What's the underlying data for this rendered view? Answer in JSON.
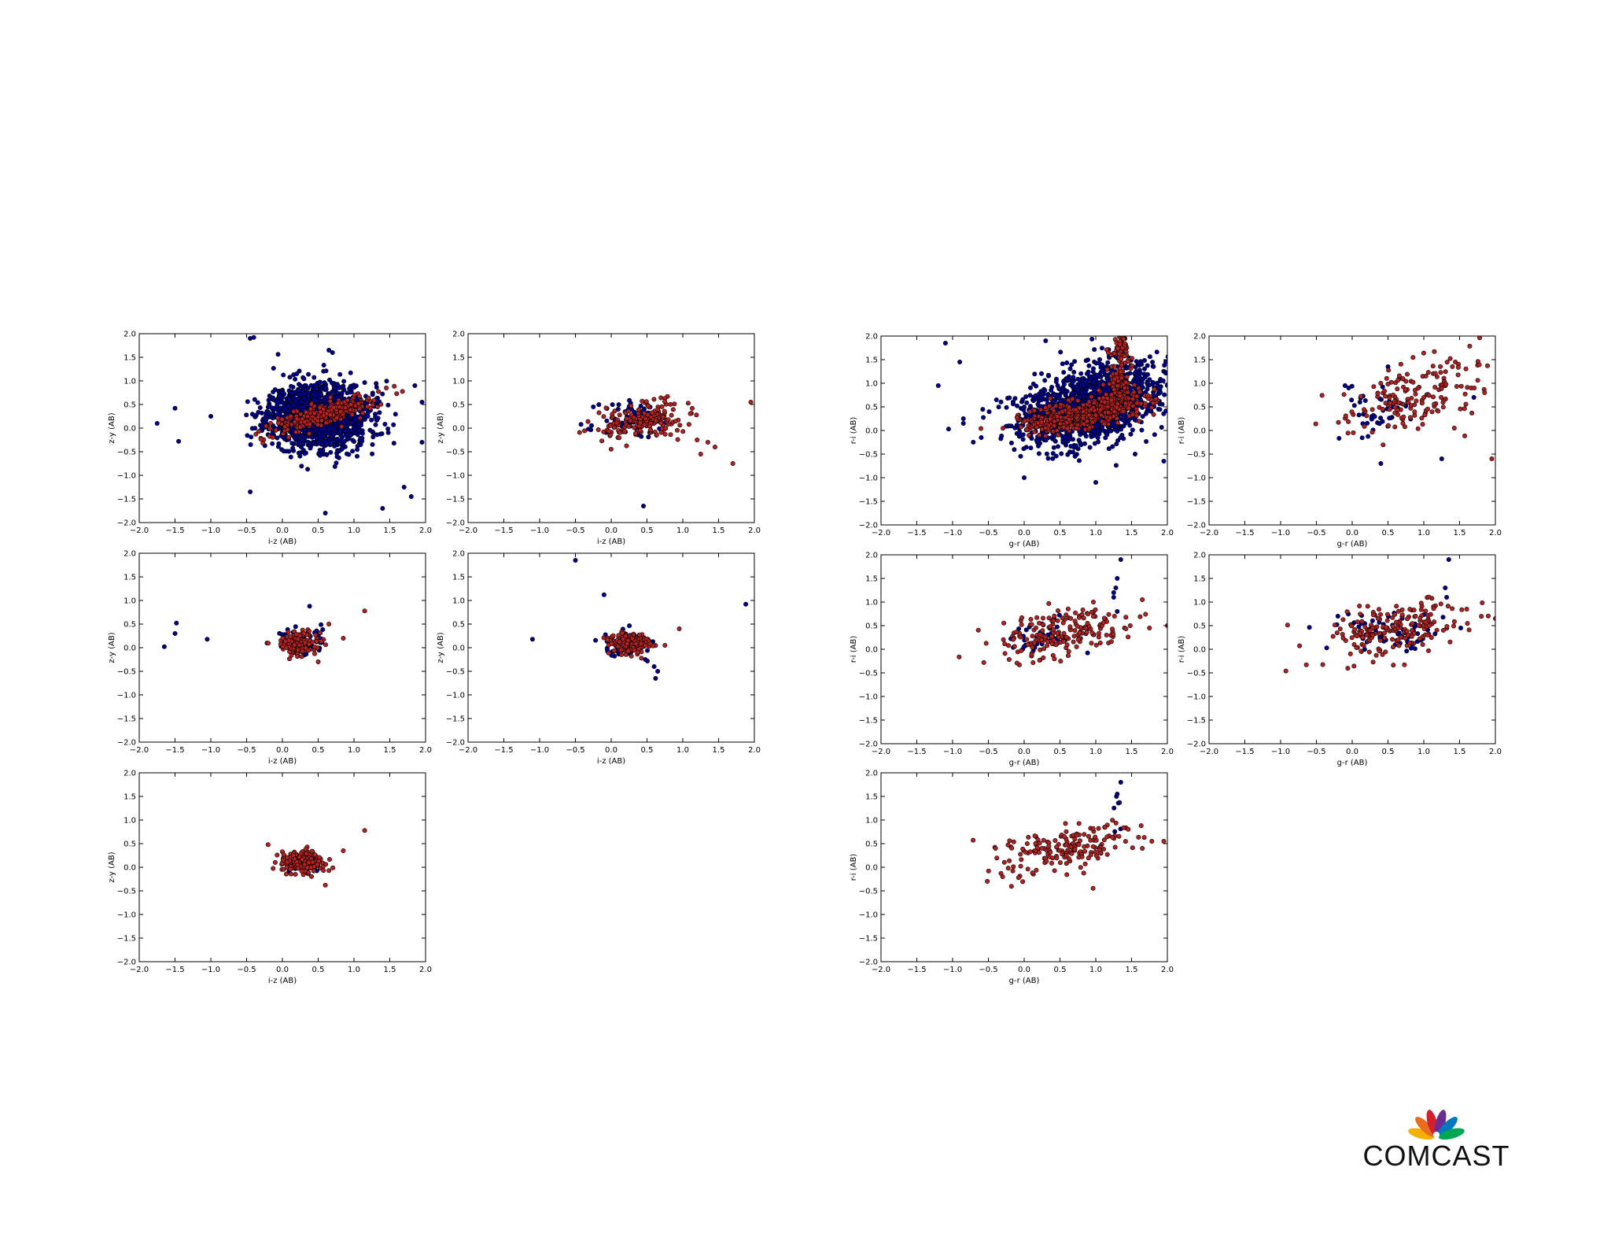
{
  "brand": {
    "logo_text": "COMCAST",
    "peacock_colors": [
      "#f2b100",
      "#e86d1f",
      "#d2202f",
      "#6a2c8e",
      "#0079c1",
      "#00a651"
    ]
  },
  "colors": {
    "series_a": "#00008b",
    "series_b": "#b22222"
  },
  "chart_data": [
    {
      "panel": "left-r1c1",
      "type": "scatter",
      "xlabel": "i-z (AB)",
      "ylabel": "z-y (AB)",
      "xlim": [
        -2.0,
        2.0
      ],
      "ylim": [
        -2.0,
        2.0
      ],
      "xticks": [
        "−2.0",
        "−1.5",
        "−1.0",
        "−0.5",
        "0.0",
        "0.5",
        "1.0",
        "1.5",
        "2.0"
      ],
      "yticks": [
        "2.0",
        "1.5",
        "1.0",
        "0.5",
        "0.0",
        "−0.5",
        "−1.0",
        "−1.5",
        "−2.0"
      ],
      "series": [
        {
          "name": "blue",
          "color": "#00008b",
          "cluster": {
            "cx": 0.5,
            "cy": 0.25,
            "sx": 0.35,
            "sy": 0.35,
            "n": 1400,
            "seed": 11
          },
          "outliers": [
            [
              -1.75,
              0.1
            ],
            [
              -1.5,
              0.42
            ],
            [
              -1.45,
              -0.28
            ],
            [
              -1.0,
              0.25
            ],
            [
              -0.45,
              1.9
            ],
            [
              -0.4,
              1.92
            ],
            [
              -0.45,
              -1.35
            ],
            [
              0.6,
              -1.8
            ],
            [
              1.4,
              -1.7
            ],
            [
              1.7,
              -1.25
            ],
            [
              1.8,
              -1.45
            ],
            [
              1.85,
              0.9
            ],
            [
              1.95,
              0.55
            ],
            [
              1.95,
              -0.3
            ],
            [
              0.7,
              1.6
            ],
            [
              0.65,
              1.65
            ]
          ]
        },
        {
          "name": "red",
          "color": "#b22222",
          "cluster": {
            "cx": 0.6,
            "cy": 0.3,
            "sx": 0.35,
            "sy": 0.12,
            "n": 300,
            "seed": 12,
            "slope": 0.45
          },
          "outliers": []
        }
      ]
    },
    {
      "panel": "left-r1c2",
      "type": "scatter",
      "xlabel": "i-z (AB)",
      "ylabel": "z-y (AB)",
      "xlim": [
        -2.0,
        2.0
      ],
      "ylim": [
        -2.0,
        2.0
      ],
      "xticks": [
        "−2.0",
        "−1.5",
        "−1.0",
        "−0.5",
        "0.0",
        "0.5",
        "1.0",
        "1.5",
        "2.0"
      ],
      "yticks": [
        "2.0",
        "1.5",
        "1.0",
        "0.5",
        "0.0",
        "−0.5",
        "−1.0",
        "−1.5",
        "−2.0"
      ],
      "series": [
        {
          "name": "blue",
          "color": "#00008b",
          "cluster": {
            "cx": 0.35,
            "cy": 0.15,
            "sx": 0.25,
            "sy": 0.2,
            "n": 70,
            "seed": 21
          },
          "outliers": [
            [
              0.45,
              -1.65
            ],
            [
              -0.25,
              0.45
            ]
          ]
        },
        {
          "name": "red",
          "color": "#b22222",
          "cluster": {
            "cx": 0.45,
            "cy": 0.15,
            "sx": 0.3,
            "sy": 0.18,
            "n": 180,
            "seed": 22,
            "slope": 0.2
          },
          "outliers": [
            [
              1.25,
              -0.55
            ],
            [
              1.35,
              -0.3
            ],
            [
              1.45,
              -0.4
            ],
            [
              1.7,
              -0.75
            ],
            [
              1.95,
              0.55
            ],
            [
              1.2,
              -0.25
            ]
          ]
        }
      ]
    },
    {
      "panel": "left-r2c1",
      "type": "scatter",
      "xlabel": "i-z (AB)",
      "ylabel": "z-y (AB)",
      "xlim": [
        -2.0,
        2.0
      ],
      "ylim": [
        -2.0,
        2.0
      ],
      "xticks": [
        "−2.0",
        "−1.5",
        "−1.0",
        "−0.5",
        "0.0",
        "0.5",
        "1.0",
        "1.5",
        "2.0"
      ],
      "yticks": [
        "2.0",
        "1.5",
        "1.0",
        "0.5",
        "0.0",
        "−0.5",
        "−1.0",
        "−1.5",
        "−2.0"
      ],
      "series": [
        {
          "name": "blue",
          "color": "#00008b",
          "cluster": {
            "cx": 0.25,
            "cy": 0.12,
            "sx": 0.18,
            "sy": 0.15,
            "n": 60,
            "seed": 31
          },
          "outliers": [
            [
              -1.65,
              0.02
            ],
            [
              -1.5,
              0.3
            ],
            [
              -1.48,
              0.52
            ],
            [
              -1.05,
              0.18
            ],
            [
              0.38,
              0.88
            ]
          ]
        },
        {
          "name": "red",
          "color": "#b22222",
          "cluster": {
            "cx": 0.2,
            "cy": 0.1,
            "sx": 0.15,
            "sy": 0.12,
            "n": 170,
            "seed": 32
          },
          "outliers": [
            [
              0.65,
              0.5
            ],
            [
              0.85,
              0.2
            ],
            [
              1.15,
              0.78
            ],
            [
              0.5,
              -0.3
            ]
          ]
        }
      ]
    },
    {
      "panel": "left-r2c2",
      "type": "scatter",
      "xlabel": "i-z (AB)",
      "ylabel": "z-y (AB)",
      "xlim": [
        -2.0,
        2.0
      ],
      "ylim": [
        -2.0,
        2.0
      ],
      "xticks": [
        "−2.0",
        "−1.5",
        "−1.0",
        "−0.5",
        "0.0",
        "0.5",
        "1.0",
        "1.5",
        "2.0"
      ],
      "yticks": [
        "2.0",
        "1.5",
        "1.0",
        "0.5",
        "0.0",
        "−0.5",
        "−1.0",
        "−1.5",
        "−2.0"
      ],
      "series": [
        {
          "name": "blue",
          "color": "#00008b",
          "cluster": {
            "cx": 0.25,
            "cy": 0.1,
            "sx": 0.2,
            "sy": 0.15,
            "n": 60,
            "seed": 41
          },
          "outliers": [
            [
              -1.1,
              0.18
            ],
            [
              -0.5,
              1.85
            ],
            [
              -0.1,
              1.12
            ],
            [
              0.6,
              -0.4
            ],
            [
              0.65,
              -0.5
            ],
            [
              0.62,
              -0.65
            ],
            [
              1.88,
              0.92
            ]
          ]
        },
        {
          "name": "red",
          "color": "#b22222",
          "cluster": {
            "cx": 0.25,
            "cy": 0.1,
            "sx": 0.15,
            "sy": 0.12,
            "n": 170,
            "seed": 42
          },
          "outliers": [
            [
              0.95,
              0.4
            ],
            [
              0.75,
              0.05
            ]
          ]
        }
      ]
    },
    {
      "panel": "left-r3c1",
      "type": "scatter",
      "xlabel": "i-z (AB)",
      "ylabel": "z-y (AB)",
      "xlim": [
        -2.0,
        2.0
      ],
      "ylim": [
        -2.0,
        2.0
      ],
      "xticks": [
        "−2.0",
        "−1.5",
        "−1.0",
        "−0.5",
        "0.0",
        "0.5",
        "1.0",
        "1.5",
        "2.0"
      ],
      "yticks": [
        "2.0",
        "1.5",
        "1.0",
        "0.5",
        "0.0",
        "−0.5",
        "−1.0",
        "−1.5",
        "−2.0"
      ],
      "series": [
        {
          "name": "blue",
          "color": "#00008b",
          "cluster": {
            "cx": 0.25,
            "cy": 0.1,
            "sx": 0.15,
            "sy": 0.12,
            "n": 25,
            "seed": 51
          },
          "outliers": []
        },
        {
          "name": "red",
          "color": "#b22222",
          "cluster": {
            "cx": 0.28,
            "cy": 0.12,
            "sx": 0.15,
            "sy": 0.13,
            "n": 180,
            "seed": 52
          },
          "outliers": [
            [
              -0.2,
              0.48
            ],
            [
              0.85,
              0.35
            ],
            [
              1.15,
              0.78
            ],
            [
              0.6,
              -0.38
            ]
          ]
        }
      ]
    },
    {
      "panel": "right-r1c1",
      "type": "scatter",
      "xlabel": "g-r (AB)",
      "ylabel": "r-i (AB)",
      "xlim": [
        -2.0,
        2.0
      ],
      "ylim": [
        -2.0,
        2.0
      ],
      "xticks": [
        "−2.0",
        "−1.5",
        "−1.0",
        "−0.5",
        "0.0",
        "0.5",
        "1.0",
        "1.5",
        "2.0"
      ],
      "yticks": [
        "2.0",
        "1.5",
        "1.0",
        "0.5",
        "0.0",
        "−0.5",
        "−1.0",
        "−1.5",
        "−2.0"
      ],
      "series": [
        {
          "name": "blue",
          "color": "#00008b",
          "cluster": {
            "cx": 0.95,
            "cy": 0.55,
            "sx": 0.5,
            "sy": 0.38,
            "n": 1500,
            "seed": 61,
            "slope": 0.35
          },
          "outliers": [
            [
              -1.2,
              0.95
            ],
            [
              -1.1,
              1.85
            ],
            [
              -0.9,
              1.45
            ],
            [
              -0.85,
              0.25
            ],
            [
              -0.85,
              0.15
            ],
            [
              0.0,
              -1.0
            ],
            [
              1.0,
              -1.1
            ],
            [
              1.55,
              -0.5
            ],
            [
              1.95,
              -0.65
            ],
            [
              0.3,
              1.9
            ],
            [
              -0.6,
              -0.15
            ]
          ]
        },
        {
          "name": "red",
          "color": "#b22222",
          "cluster": {
            "cx": 0.8,
            "cy": 0.35,
            "sx": 0.45,
            "sy": 0.15,
            "n": 450,
            "seed": 62,
            "slope": 0.3
          },
          "extra_band": {
            "x": 1.3,
            "ymin": 0.6,
            "ymax": 2.0,
            "n": 160
          },
          "outliers": []
        }
      ]
    },
    {
      "panel": "right-r1c2",
      "type": "scatter",
      "xlabel": "g-r (AB)",
      "ylabel": "r-i (AB)",
      "xlim": [
        -2.0,
        2.0
      ],
      "ylim": [
        -2.0,
        2.0
      ],
      "xticks": [
        "−2.0",
        "−1.5",
        "−1.0",
        "−0.5",
        "0.0",
        "0.5",
        "1.0",
        "1.5",
        "2.0"
      ],
      "yticks": [
        "2.0",
        "1.5",
        "1.0",
        "0.5",
        "0.0",
        "−0.5",
        "−1.0",
        "−1.5",
        "−2.0"
      ],
      "series": [
        {
          "name": "blue",
          "color": "#00008b",
          "cluster": {
            "cx": 0.35,
            "cy": 0.35,
            "sx": 0.25,
            "sy": 0.25,
            "n": 40,
            "seed": 71
          },
          "outliers": [
            [
              -0.1,
              0.95
            ],
            [
              -0.05,
              0.9
            ],
            [
              0.4,
              -0.7
            ],
            [
              1.25,
              -0.6
            ],
            [
              1.7,
              0.7
            ],
            [
              0.5,
              1.35
            ]
          ]
        },
        {
          "name": "red",
          "color": "#b22222",
          "cluster": {
            "cx": 0.85,
            "cy": 0.75,
            "sx": 0.5,
            "sy": 0.35,
            "n": 170,
            "seed": 72,
            "slope": 0.4
          },
          "outliers": [
            [
              1.95,
              -0.6
            ],
            [
              1.85,
              0.8
            ]
          ]
        }
      ]
    },
    {
      "panel": "right-r2c1",
      "type": "scatter",
      "xlabel": "g-r (AB)",
      "ylabel": "r-i (AB)",
      "xlim": [
        -2.0,
        2.0
      ],
      "ylim": [
        -2.0,
        2.0
      ],
      "xticks": [
        "−2.0",
        "−1.5",
        "−1.0",
        "−0.5",
        "0.0",
        "0.5",
        "1.0",
        "1.5",
        "2.0"
      ],
      "yticks": [
        "2.0",
        "1.5",
        "1.0",
        "0.5",
        "0.0",
        "−0.5",
        "−1.0",
        "−1.5",
        "−2.0"
      ],
      "series": [
        {
          "name": "blue",
          "color": "#00008b",
          "cluster": {
            "cx": 0.25,
            "cy": 0.25,
            "sx": 0.2,
            "sy": 0.2,
            "n": 45,
            "seed": 81
          },
          "outliers": [
            [
              1.25,
              1.1
            ],
            [
              1.28,
              1.3
            ],
            [
              1.3,
              1.5
            ],
            [
              1.35,
              1.9
            ],
            [
              1.3,
              0.8
            ],
            [
              1.25,
              1.2
            ]
          ]
        },
        {
          "name": "red",
          "color": "#b22222",
          "cluster": {
            "cx": 0.55,
            "cy": 0.35,
            "sx": 0.45,
            "sy": 0.25,
            "n": 190,
            "seed": 82,
            "slope": 0.3
          },
          "outliers": [
            [
              2.0,
              0.5
            ],
            [
              1.75,
              0.45
            ],
            [
              1.65,
              1.05
            ]
          ]
        }
      ]
    },
    {
      "panel": "right-r2c2",
      "type": "scatter",
      "xlabel": "g-r (AB)",
      "ylabel": "r-i (AB)",
      "xlim": [
        -2.0,
        2.0
      ],
      "ylim": [
        -2.0,
        2.0
      ],
      "xticks": [
        "−2.0",
        "−1.5",
        "−1.0",
        "−0.5",
        "0.0",
        "0.5",
        "1.0",
        "1.5",
        "2.0"
      ],
      "yticks": [
        "2.0",
        "1.5",
        "1.0",
        "0.5",
        "0.0",
        "−0.5",
        "−1.0",
        "−1.5",
        "−2.0"
      ],
      "series": [
        {
          "name": "blue",
          "color": "#00008b",
          "cluster": {
            "cx": 0.5,
            "cy": 0.35,
            "sx": 0.35,
            "sy": 0.2,
            "n": 60,
            "seed": 91
          },
          "outliers": [
            [
              1.3,
              1.3
            ],
            [
              1.32,
              1.1
            ],
            [
              1.35,
              1.9
            ],
            [
              -0.2,
              0.7
            ]
          ]
        },
        {
          "name": "red",
          "color": "#b22222",
          "cluster": {
            "cx": 0.6,
            "cy": 0.4,
            "sx": 0.5,
            "sy": 0.25,
            "n": 200,
            "seed": 92,
            "slope": 0.3
          },
          "outliers": [
            [
              2.0,
              0.65
            ],
            [
              1.6,
              0.85
            ]
          ]
        }
      ]
    },
    {
      "panel": "right-r3c1",
      "type": "scatter",
      "xlabel": "g-r (AB)",
      "ylabel": "r-i (AB)",
      "xlim": [
        -2.0,
        2.0
      ],
      "ylim": [
        -2.0,
        2.0
      ],
      "xticks": [
        "−2.0",
        "−1.5",
        "−1.0",
        "−0.5",
        "0.0",
        "0.5",
        "1.0",
        "1.5",
        "2.0"
      ],
      "yticks": [
        "2.0",
        "1.5",
        "1.0",
        "0.5",
        "0.0",
        "−0.5",
        "−1.0",
        "−1.5",
        "−2.0"
      ],
      "series": [
        {
          "name": "blue",
          "color": "#00008b",
          "cluster": {
            "cx": 1.3,
            "cy": 1.3,
            "sx": 0.03,
            "sy": 0.25,
            "n": 6,
            "seed": 101
          },
          "outliers": [
            [
              1.35,
              1.8
            ],
            [
              1.3,
              1.55
            ]
          ]
        },
        {
          "name": "red",
          "color": "#b22222",
          "cluster": {
            "cx": 0.55,
            "cy": 0.35,
            "sx": 0.45,
            "sy": 0.25,
            "n": 180,
            "seed": 102,
            "slope": 0.3
          },
          "outliers": [
            [
              -0.4,
              0.4
            ],
            [
              1.95,
              0.55
            ],
            [
              1.65,
              0.4
            ]
          ]
        }
      ]
    }
  ]
}
